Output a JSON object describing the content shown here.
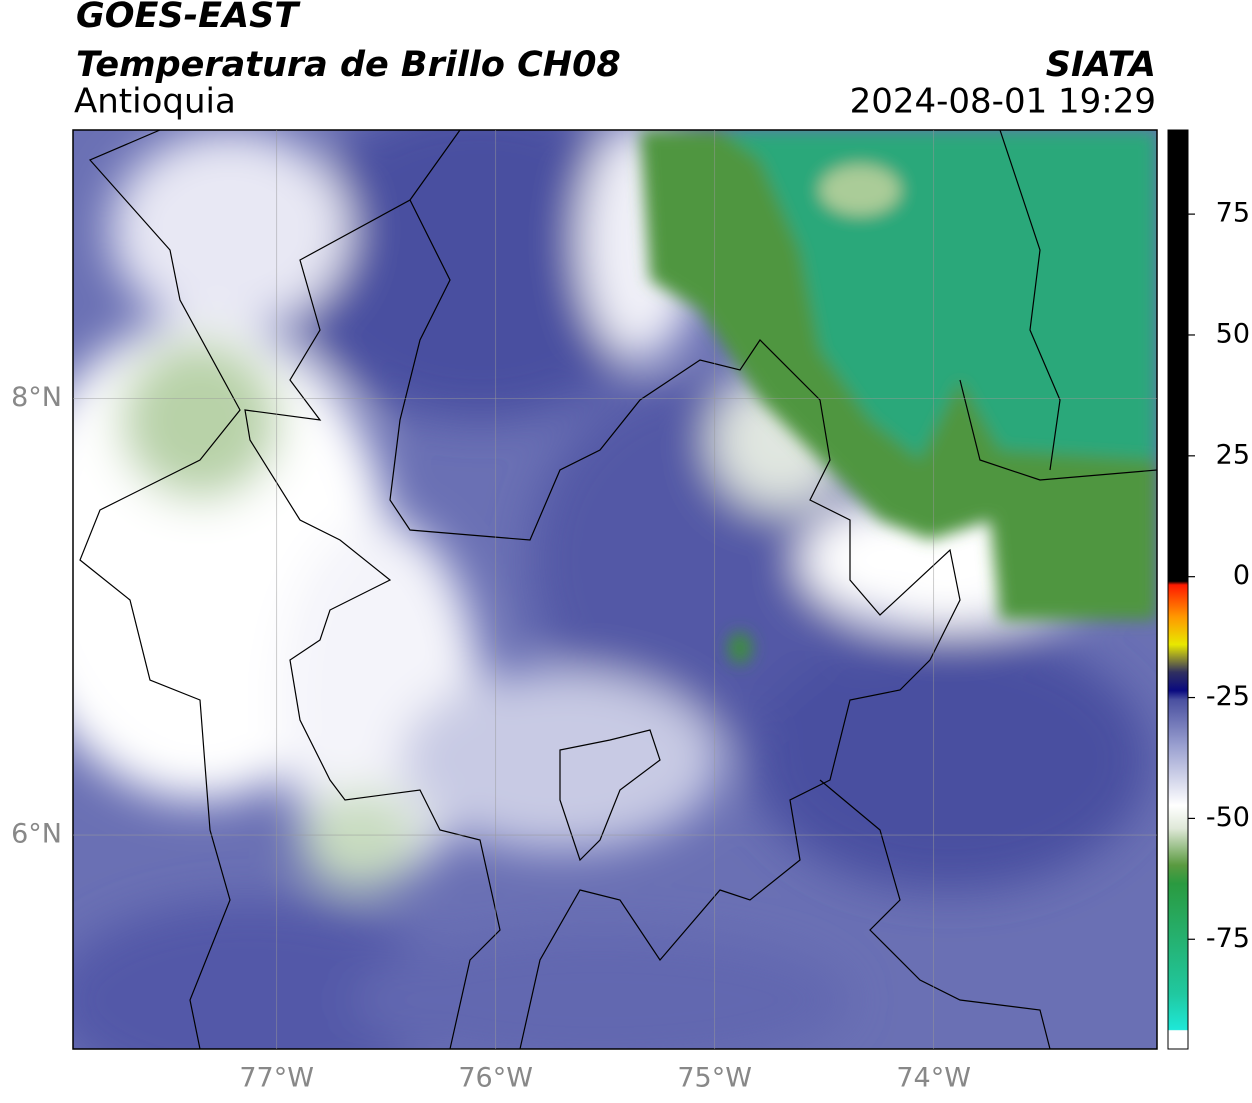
{
  "header": {
    "title": "GOES-EAST",
    "subtitle": "Temperatura de Brillo CH08",
    "region": "Antioquia",
    "source": "SIATA",
    "datetime": "2024-08-01 19:29"
  },
  "map": {
    "xlim": [
      -77.93,
      -72.98
    ],
    "ylim": [
      5.02,
      9.23
    ],
    "xticks": [
      {
        "value": -77,
        "label": "77°W"
      },
      {
        "value": -76,
        "label": "76°W"
      },
      {
        "value": -75,
        "label": "75°W"
      },
      {
        "value": -74,
        "label": "74°W"
      }
    ],
    "yticks": [
      {
        "value": 8,
        "label": "8°N"
      },
      {
        "value": 6,
        "label": "6°N"
      }
    ]
  },
  "colorbar": {
    "lim": [
      -97.7,
      92.4
    ],
    "ticks": [
      75,
      50,
      25,
      0,
      -25,
      -50,
      -75
    ]
  }
}
